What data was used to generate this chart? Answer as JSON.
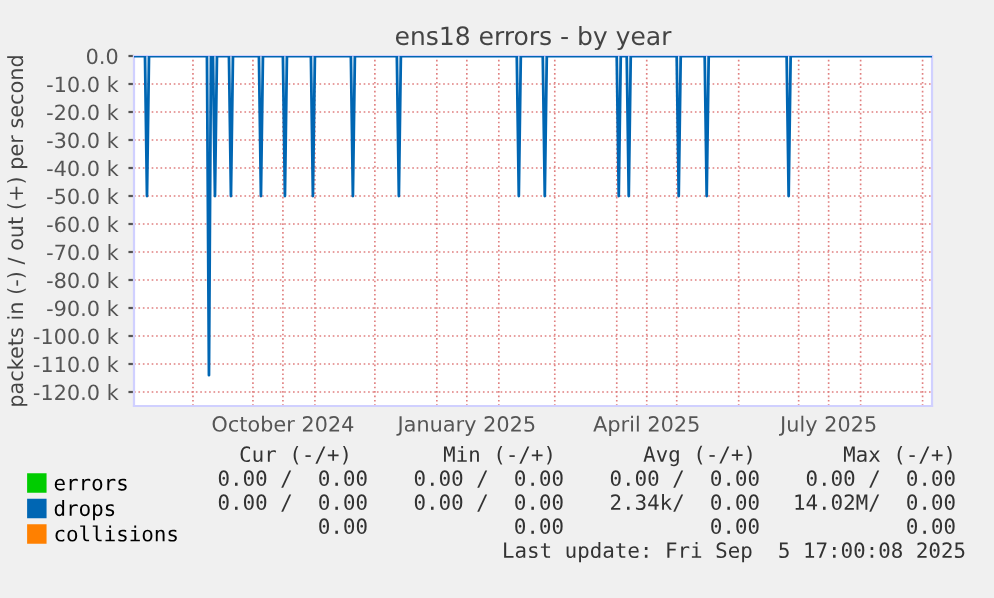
{
  "chart_data": {
    "type": "line",
    "title": "ens18 errors - by year",
    "ylabel": "packets in (-) / out (+) per second",
    "xlim": [
      "2024-08-02T12:00",
      "2025-09-05T17:00"
    ],
    "xticks": [
      {
        "value": "2024-09-01",
        "label": null
      },
      {
        "value": "2024-10-01",
        "label": null
      },
      {
        "value": "2024-10-16",
        "label": "October 2024"
      },
      {
        "value": "2024-11-01",
        "label": null
      },
      {
        "value": "2024-12-01",
        "label": null
      },
      {
        "value": "2025-01-01",
        "label": null
      },
      {
        "value": "2025-01-16",
        "label": "January 2025"
      },
      {
        "value": "2025-02-01",
        "label": null
      },
      {
        "value": "2025-03-01",
        "label": null
      },
      {
        "value": "2025-04-01",
        "label": null
      },
      {
        "value": "2025-04-16",
        "label": "April 2025"
      },
      {
        "value": "2025-05-01",
        "label": null
      },
      {
        "value": "2025-06-01",
        "label": null
      },
      {
        "value": "2025-07-01",
        "label": null
      },
      {
        "value": "2025-07-16",
        "label": "July 2025"
      },
      {
        "value": "2025-08-01",
        "label": null
      },
      {
        "value": "2025-09-01",
        "label": null
      }
    ],
    "ylim": [
      -125000,
      0
    ],
    "yticks": [
      {
        "value": 0,
        "label": "0.0"
      },
      {
        "value": -10000,
        "label": "-10.0 k"
      },
      {
        "value": -20000,
        "label": "-20.0 k"
      },
      {
        "value": -30000,
        "label": "-30.0 k"
      },
      {
        "value": -40000,
        "label": "-40.0 k"
      },
      {
        "value": -50000,
        "label": "-50.0 k"
      },
      {
        "value": -60000,
        "label": "-60.0 k"
      },
      {
        "value": -70000,
        "label": "-70.0 k"
      },
      {
        "value": -80000,
        "label": "-80.0 k"
      },
      {
        "value": -90000,
        "label": "-90.0 k"
      },
      {
        "value": -100000,
        "label": "-100.0 k"
      },
      {
        "value": -110000,
        "label": "-110.0 k"
      },
      {
        "value": -120000,
        "label": "-120.0 k"
      }
    ],
    "grid": true,
    "legend": "bottom",
    "marker": "none",
    "line_style": "solid",
    "series": [
      {
        "name": "errors",
        "color": "#00cc00"
      },
      {
        "name": "drops",
        "color": "#0066b3",
        "x": [
          "2024-08-02T12:00",
          "2024-08-08",
          "2024-08-09",
          "2024-08-10",
          "2024-09-08",
          "2024-09-09",
          "2024-09-10",
          "2024-09-11",
          "2024-09-12",
          "2024-09-13",
          "2024-09-19",
          "2024-09-20",
          "2024-09-21",
          "2024-10-04",
          "2024-10-05",
          "2024-10-06",
          "2024-10-16",
          "2024-10-17",
          "2024-10-18",
          "2024-10-30",
          "2024-10-31",
          "2024-11-01",
          "2024-11-19",
          "2024-11-20",
          "2024-11-21",
          "2024-12-12",
          "2024-12-13",
          "2024-12-14",
          "2025-02-10",
          "2025-02-11",
          "2025-02-12",
          "2025-02-23",
          "2025-02-24",
          "2025-02-25",
          "2025-04-01",
          "2025-04-02",
          "2025-04-03",
          "2025-04-06",
          "2025-04-07",
          "2025-04-08",
          "2025-05-01",
          "2025-05-02",
          "2025-05-03",
          "2025-05-15",
          "2025-05-16",
          "2025-05-17",
          "2025-06-25",
          "2025-06-26",
          "2025-06-27",
          "2025-09-05T17:00"
        ],
        "values": [
          0,
          0,
          -50000,
          0,
          0,
          -114000,
          0,
          0,
          -50000,
          0,
          0,
          -50000,
          0,
          0,
          -50000,
          0,
          0,
          -50000,
          0,
          0,
          -50000,
          0,
          0,
          -50000,
          0,
          0,
          -50000,
          0,
          0,
          -50000,
          0,
          0,
          -50000,
          0,
          0,
          -50000,
          0,
          0,
          -50000,
          0,
          0,
          -50000,
          0,
          0,
          -50000,
          0,
          0,
          -50000,
          0,
          0
        ]
      },
      {
        "name": "collisions",
        "color": "#ff8000"
      }
    ],
    "annotations": [
      "Cur (-/+)",
      "Min (-/+)",
      "Avg (-/+)",
      "Max (-/+)",
      "0.00 /  0.00",
      "0.00 /  0.00",
      "0.00 /  0.00",
      "0.00 /  0.00",
      "0.00 /  0.00",
      "0.00 /  0.00",
      "2.34k/  0.00",
      "14.02M/  0.00",
      "0.00",
      "0.00",
      "0.00",
      "0.00",
      "Last update: Fri Sep  5 17:00:08 2025"
    ]
  }
}
